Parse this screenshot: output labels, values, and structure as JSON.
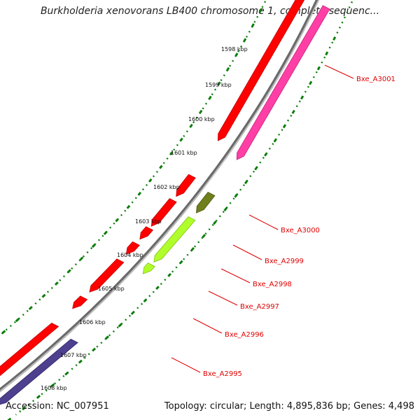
{
  "title": "Burkholderia xenovorans LB400 chromosome 1, complete sequenc...",
  "footer": {
    "accession": "Accession: NC_007951",
    "stats": "Topology: circular; Length: 4,895,836 bp; Genes: 4,498"
  },
  "scale": {
    "ticks": [
      {
        "label": "1598 kbp"
      },
      {
        "label": "1599 kbp"
      },
      {
        "label": "1600 kbp"
      },
      {
        "label": "1601 kbp"
      },
      {
        "label": "1602 kbp"
      },
      {
        "label": "1603 kbp"
      },
      {
        "label": "1604 kbp"
      },
      {
        "label": "1605 kbp"
      },
      {
        "label": "1606 kbp"
      },
      {
        "label": "1607 kbp"
      },
      {
        "label": "1608 kbp"
      }
    ]
  },
  "genes": [
    {
      "label": "Bxe_A3001",
      "color": "#ff3fa6"
    },
    {
      "label": "Bxe_A3000",
      "color": "#6f7f1c"
    },
    {
      "label": "Bxe_A2999",
      "color": "#b0ff2a"
    },
    {
      "label": "Bxe_A2998",
      "color": "#b0ff2a"
    },
    {
      "label": "Bxe_A2997",
      "color": "#b0ff2a"
    },
    {
      "label": "Bxe_A2996",
      "color": "#ff0000"
    },
    {
      "label": "Bxe_A2995",
      "color": "#ff0000"
    }
  ],
  "colors": {
    "backbone": "#8a8a8a",
    "cds_forward": "#ff0000",
    "cds_reverse_purple": "#4e3f8f",
    "dotted_ring": "#0a7d0a",
    "label": "#e00000"
  }
}
